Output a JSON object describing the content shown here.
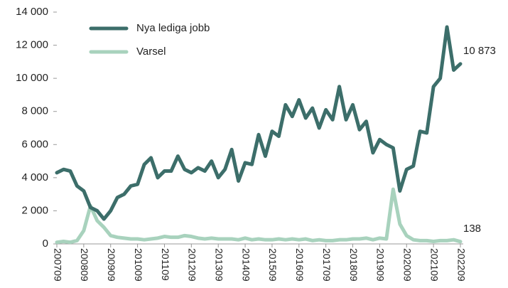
{
  "chart_data": {
    "type": "line",
    "categories": [
      "200709",
      null,
      null,
      null,
      "200809",
      null,
      null,
      null,
      "200909",
      null,
      null,
      null,
      "201009",
      null,
      null,
      null,
      "201109",
      null,
      null,
      null,
      "201209",
      null,
      null,
      null,
      "201309",
      null,
      null,
      null,
      "201409",
      null,
      null,
      null,
      "201509",
      null,
      null,
      null,
      "201609",
      null,
      null,
      null,
      "201709",
      null,
      null,
      null,
      "201809",
      null,
      null,
      null,
      "201909",
      null,
      null,
      null,
      "202009",
      null,
      null,
      null,
      "202109",
      null,
      null,
      null,
      "202209"
    ],
    "series": [
      {
        "name": "Nya lediga jobb",
        "color": "#3c6e6a",
        "values": [
          4300,
          4500,
          4400,
          3500,
          3200,
          2200,
          2000,
          1500,
          2000,
          2800,
          3000,
          3500,
          3600,
          4800,
          5200,
          4000,
          4400,
          4400,
          5300,
          4500,
          4300,
          4600,
          4400,
          5000,
          4000,
          4500,
          5700,
          3800,
          4900,
          4800,
          6600,
          5300,
          6800,
          6500,
          8400,
          7700,
          8700,
          7600,
          8200,
          7000,
          8100,
          7500,
          9500,
          7500,
          8400,
          6900,
          7400,
          5500,
          6300,
          6000,
          5800,
          3200,
          4500,
          4700,
          6800,
          6700,
          9500,
          10000,
          13100,
          10500,
          10873
        ],
        "value_labels": [
          null,
          null,
          null,
          null,
          null,
          null,
          null,
          null,
          null,
          null,
          null,
          null,
          null,
          null,
          null,
          null,
          null,
          null,
          null,
          null,
          null,
          null,
          null,
          null,
          null,
          null,
          null,
          null,
          null,
          null,
          null,
          null,
          null,
          null,
          null,
          null,
          null,
          null,
          null,
          null,
          null,
          null,
          null,
          null,
          null,
          null,
          null,
          null,
          null,
          null,
          null,
          null,
          null,
          null,
          null,
          null,
          null,
          null,
          null,
          null,
          "10 873"
        ]
      },
      {
        "name": "Varsel",
        "color": "#a8d2bd",
        "values": [
          100,
          150,
          100,
          200,
          800,
          2300,
          1400,
          1000,
          500,
          400,
          350,
          300,
          300,
          250,
          300,
          350,
          450,
          400,
          400,
          500,
          450,
          350,
          300,
          350,
          300,
          300,
          300,
          250,
          350,
          250,
          300,
          250,
          250,
          300,
          250,
          300,
          250,
          300,
          200,
          250,
          200,
          200,
          250,
          250,
          300,
          300,
          350,
          250,
          350,
          300,
          3300,
          1200,
          500,
          250,
          200,
          200,
          150,
          200,
          200,
          250,
          138
        ],
        "value_labels": [
          null,
          null,
          null,
          null,
          null,
          null,
          null,
          null,
          null,
          null,
          null,
          null,
          null,
          null,
          null,
          null,
          null,
          null,
          null,
          null,
          null,
          null,
          null,
          null,
          null,
          null,
          null,
          null,
          null,
          null,
          null,
          null,
          null,
          null,
          null,
          null,
          null,
          null,
          null,
          null,
          null,
          null,
          null,
          null,
          null,
          null,
          null,
          null,
          null,
          null,
          null,
          null,
          null,
          null,
          null,
          null,
          null,
          null,
          null,
          null,
          "138"
        ]
      }
    ],
    "ylim": [
      0,
      14000
    ],
    "yticks": [
      0,
      {
        "value": 2000,
        "label": "2 000"
      },
      {
        "value": 4000,
        "label": "4 000"
      },
      {
        "value": 6000,
        "label": "6 000"
      },
      {
        "value": 8000,
        "label": "8 000"
      },
      {
        "value": 10000,
        "label": "10 000"
      },
      {
        "value": 12000,
        "label": "12 000"
      },
      {
        "value": 14000,
        "label": "14 000"
      }
    ],
    "legend": "top-left"
  }
}
